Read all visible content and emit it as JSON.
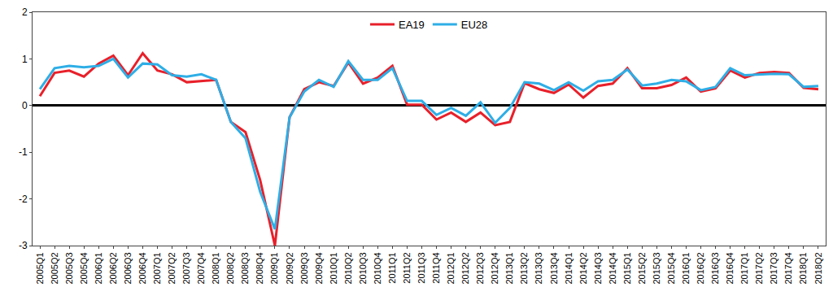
{
  "chart_data": {
    "type": "line",
    "categories": [
      "2005Q1",
      "2005Q2",
      "2005Q3",
      "2005Q4",
      "2006Q1",
      "2006Q2",
      "2006Q3",
      "2006Q4",
      "2007Q1",
      "2007Q2",
      "2007Q3",
      "2007Q4",
      "2008Q1",
      "2008Q2",
      "2008Q3",
      "2008Q4",
      "2009Q1",
      "2009Q2",
      "2009Q3",
      "2009Q4",
      "2010Q1",
      "2010Q2",
      "2010Q3",
      "2010Q4",
      "2011Q1",
      "2011Q2",
      "2011Q3",
      "2011Q4",
      "2012Q1",
      "2012Q2",
      "2012Q3",
      "2012Q4",
      "2013Q1",
      "2013Q2",
      "2013Q3",
      "2013Q4",
      "2014Q1",
      "2014Q2",
      "2014Q3",
      "2014Q4",
      "2015Q1",
      "2015Q2",
      "2015Q3",
      "2015Q4",
      "2016Q1",
      "2016Q2",
      "2016Q3",
      "2016Q4",
      "2017Q1",
      "2017Q2",
      "2017Q3",
      "2017Q4",
      "2018Q1",
      "2018Q2"
    ],
    "series": [
      {
        "name": "EA19",
        "color": "#e8202a",
        "values": [
          0.2,
          0.7,
          0.75,
          0.62,
          0.9,
          1.07,
          0.65,
          1.12,
          0.75,
          0.67,
          0.5,
          0.52,
          0.55,
          -0.35,
          -0.57,
          -1.6,
          -3.0,
          -0.25,
          0.35,
          0.5,
          0.42,
          0.92,
          0.47,
          0.6,
          0.85,
          0.02,
          0.02,
          -0.3,
          -0.15,
          -0.35,
          -0.15,
          -0.42,
          -0.35,
          0.48,
          0.35,
          0.27,
          0.45,
          0.17,
          0.42,
          0.47,
          0.8,
          0.37,
          0.37,
          0.44,
          0.6,
          0.3,
          0.37,
          0.75,
          0.6,
          0.7,
          0.72,
          0.7,
          0.38,
          0.35
        ]
      },
      {
        "name": "EU28",
        "color": "#2eaee6",
        "values": [
          0.35,
          0.8,
          0.85,
          0.82,
          0.85,
          1.0,
          0.6,
          0.9,
          0.88,
          0.65,
          0.62,
          0.67,
          0.55,
          -0.35,
          -0.7,
          -1.85,
          -2.65,
          -0.25,
          0.3,
          0.55,
          0.4,
          0.95,
          0.55,
          0.55,
          0.8,
          0.1,
          0.1,
          -0.2,
          -0.05,
          -0.22,
          0.07,
          -0.37,
          -0.05,
          0.5,
          0.47,
          0.33,
          0.5,
          0.32,
          0.52,
          0.55,
          0.77,
          0.43,
          0.47,
          0.55,
          0.52,
          0.33,
          0.4,
          0.8,
          0.65,
          0.67,
          0.68,
          0.67,
          0.4,
          0.42
        ]
      }
    ],
    "ylim": [
      -3,
      2
    ],
    "yticks": [
      -3,
      -2,
      -1,
      0,
      1,
      2
    ],
    "grid": false,
    "legend": "top"
  }
}
